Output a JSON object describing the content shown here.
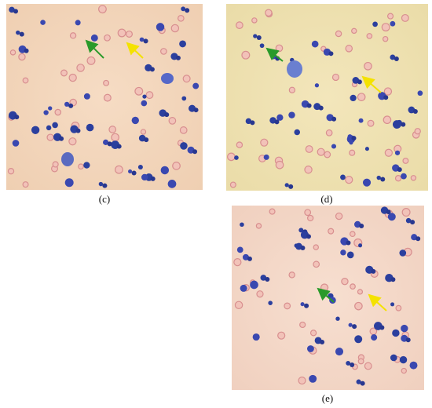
{
  "figure": {
    "panels": [
      {
        "label": "(c)"
      },
      {
        "label": "(d)"
      },
      {
        "label": "(e)"
      }
    ]
  }
}
